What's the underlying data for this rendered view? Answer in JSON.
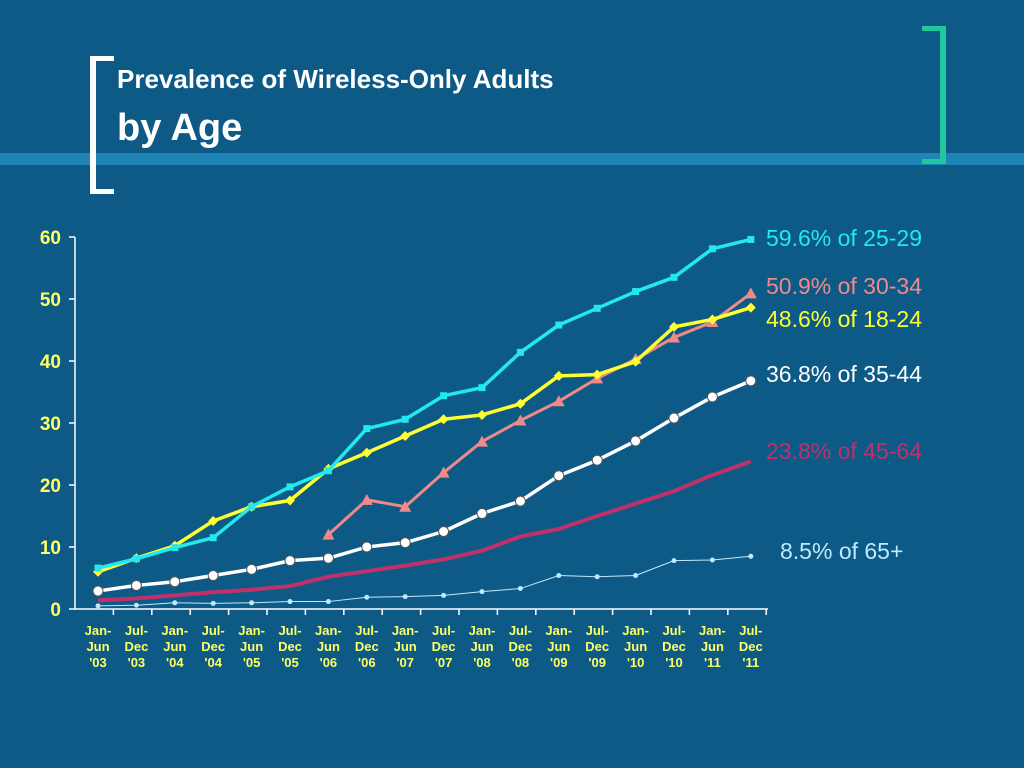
{
  "slide": {
    "title": "Prevalence of Wireless-Only Adults",
    "subtitle": "by Age"
  },
  "colors": {
    "background": "#0d5a87",
    "axis": "#ffffff",
    "tick_label": "#ffff66",
    "y_tick_label": "#ffff66"
  },
  "chart_data": {
    "type": "line",
    "title": "",
    "xlabel": "",
    "ylabel": "",
    "ylim": [
      0,
      60
    ],
    "yticks": [
      0,
      10,
      20,
      30,
      40,
      50,
      60
    ],
    "grid": false,
    "legend": "direct labels at right",
    "categories": [
      [
        "Jan-",
        "Jun",
        "'03"
      ],
      [
        "Jul-",
        "Dec",
        "'03"
      ],
      [
        "Jan-",
        "Jun",
        "'04"
      ],
      [
        "Jul-",
        "Dec",
        "'04"
      ],
      [
        "Jan-",
        "Jun",
        "'05"
      ],
      [
        "Jul-",
        "Dec",
        "'05"
      ],
      [
        "Jan-",
        "Jun",
        "'06"
      ],
      [
        "Jul-",
        "Dec",
        "'06"
      ],
      [
        "Jan-",
        "Jun",
        "'07"
      ],
      [
        "Jul-",
        "Dec",
        "'07"
      ],
      [
        "Jan-",
        "Jun",
        "'08"
      ],
      [
        "Jul-",
        "Dec",
        "'08"
      ],
      [
        "Jan-",
        "Jun",
        "'09"
      ],
      [
        "Jul-",
        "Dec",
        "'09"
      ],
      [
        "Jan-",
        "Jun",
        "'10"
      ],
      [
        "Jul-",
        "Dec",
        "'10"
      ],
      [
        "Jan-",
        "Jun",
        "'11"
      ],
      [
        "Jul-",
        "Dec",
        "'11"
      ]
    ],
    "series": [
      {
        "key": "age-25-29",
        "end_label": "59.6% of 25-29",
        "color": "#22e8f0",
        "marker": "square",
        "values": [
          6.6,
          8.1,
          9.9,
          11.5,
          16.5,
          19.7,
          22.3,
          29.1,
          30.6,
          34.4,
          35.7,
          41.4,
          45.8,
          48.5,
          51.2,
          53.5,
          58.1,
          59.6
        ]
      },
      {
        "key": "age-30-34",
        "end_label": "50.9% of 30-34",
        "color": "#f08a8a",
        "marker": "triangle",
        "values": [
          null,
          null,
          null,
          null,
          null,
          null,
          12.0,
          17.6,
          16.5,
          22.0,
          27.0,
          30.4,
          33.5,
          37.2,
          40.3,
          43.8,
          46.3,
          50.9
        ]
      },
      {
        "key": "age-18-24",
        "end_label": "48.6% of 18-24",
        "color": "#ffff33",
        "marker": "diamond",
        "values": [
          6.0,
          8.2,
          10.2,
          14.2,
          16.5,
          17.5,
          22.6,
          25.2,
          27.9,
          30.6,
          31.3,
          33.1,
          37.6,
          37.8,
          39.9,
          45.5,
          46.7,
          48.6
        ]
      },
      {
        "key": "age-35-44",
        "end_label": "36.8% of 35-44",
        "color": "#ffffff",
        "marker": "circle",
        "values": [
          2.9,
          3.8,
          4.4,
          5.4,
          6.4,
          7.8,
          8.2,
          10.0,
          10.7,
          12.5,
          15.4,
          17.4,
          21.5,
          24.0,
          27.1,
          30.8,
          34.2,
          36.8
        ]
      },
      {
        "key": "age-45-64",
        "end_label": "23.8% of 45-64",
        "color": "#c0306a",
        "marker": "none",
        "values": [
          1.4,
          1.7,
          2.2,
          2.7,
          3.1,
          3.7,
          5.2,
          6.1,
          7.0,
          8.0,
          9.4,
          11.7,
          12.9,
          15.0,
          17.0,
          19.0,
          21.6,
          23.8
        ]
      },
      {
        "key": "age-65-plus",
        "end_label": "8.5% of 65+",
        "color": "#bfe9ff",
        "marker": "smalldot",
        "values": [
          0.5,
          0.6,
          1.0,
          0.9,
          1.0,
          1.2,
          1.2,
          1.9,
          2.0,
          2.2,
          2.8,
          3.3,
          5.4,
          5.2,
          5.4,
          7.8,
          7.9,
          8.5
        ]
      }
    ]
  }
}
